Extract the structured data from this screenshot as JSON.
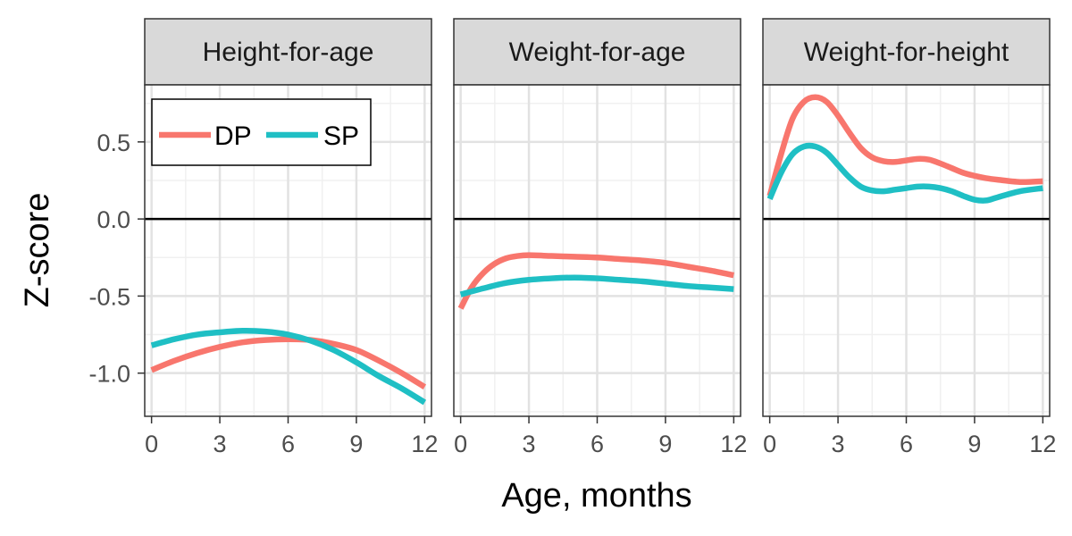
{
  "chart_data": {
    "type": "line",
    "xlabel": "Age, months",
    "ylabel": "Z-score",
    "xlim": [
      -0.3,
      12.3
    ],
    "ylim": [
      -1.28,
      0.87
    ],
    "x_ticks": [
      0,
      3,
      6,
      9,
      12
    ],
    "y_ticks": [
      0.5,
      0.0,
      -0.5,
      -1.0
    ],
    "y_tick_labels": [
      "0.5",
      "0.0",
      "-0.5",
      "-1.0"
    ],
    "reference_line": 0,
    "grid": true,
    "legend": {
      "position": "top-left",
      "entries": [
        "DP",
        "SP"
      ]
    },
    "colors": {
      "DP": "#f8766d",
      "SP": "#1fbfc4"
    },
    "panels": [
      {
        "title": "Height-for-age",
        "series": [
          {
            "name": "DP",
            "x": [
              0,
              1,
              2,
              3,
              4,
              5,
              6,
              7,
              8,
              9,
              10,
              11,
              12
            ],
            "values": [
              -0.98,
              -0.92,
              -0.87,
              -0.83,
              -0.8,
              -0.785,
              -0.78,
              -0.785,
              -0.81,
              -0.85,
              -0.92,
              -1.0,
              -1.09
            ]
          },
          {
            "name": "SP",
            "x": [
              0,
              1,
              2,
              3,
              4,
              5,
              6,
              7,
              8,
              9,
              10,
              11,
              12
            ],
            "values": [
              -0.82,
              -0.78,
              -0.75,
              -0.735,
              -0.725,
              -0.73,
              -0.75,
              -0.79,
              -0.85,
              -0.93,
              -1.02,
              -1.1,
              -1.19
            ]
          }
        ]
      },
      {
        "title": "Weight-for-age",
        "series": [
          {
            "name": "DP",
            "x": [
              0,
              0.5,
              1,
              1.5,
              2,
              2.5,
              3,
              4,
              5,
              6,
              7,
              8,
              9,
              10,
              11,
              12
            ],
            "values": [
              -0.58,
              -0.44,
              -0.35,
              -0.29,
              -0.255,
              -0.24,
              -0.235,
              -0.24,
              -0.245,
              -0.25,
              -0.26,
              -0.27,
              -0.285,
              -0.31,
              -0.335,
              -0.365
            ]
          },
          {
            "name": "SP",
            "x": [
              0,
              1,
              2,
              3,
              4,
              5,
              6,
              7,
              8,
              9,
              10,
              11,
              12
            ],
            "values": [
              -0.49,
              -0.45,
              -0.415,
              -0.395,
              -0.385,
              -0.38,
              -0.385,
              -0.395,
              -0.405,
              -0.42,
              -0.435,
              -0.445,
              -0.455
            ]
          }
        ]
      },
      {
        "title": "Weight-for-height",
        "series": [
          {
            "name": "DP",
            "x": [
              0,
              0.5,
              1,
              1.5,
              2,
              2.5,
              3,
              3.5,
              4,
              4.5,
              5,
              5.5,
              6,
              6.5,
              7,
              7.5,
              8,
              8.5,
              9,
              9.5,
              10,
              11,
              12
            ],
            "values": [
              0.15,
              0.42,
              0.65,
              0.76,
              0.79,
              0.76,
              0.67,
              0.56,
              0.46,
              0.4,
              0.375,
              0.37,
              0.38,
              0.39,
              0.385,
              0.36,
              0.33,
              0.3,
              0.28,
              0.265,
              0.255,
              0.24,
              0.245
            ]
          },
          {
            "name": "SP",
            "x": [
              0,
              0.5,
              1,
              1.5,
              2,
              2.5,
              3,
              3.5,
              4,
              4.5,
              5,
              5.5,
              6,
              6.5,
              7,
              7.5,
              8,
              8.5,
              9,
              9.5,
              10,
              11,
              12
            ],
            "values": [
              0.13,
              0.3,
              0.42,
              0.47,
              0.47,
              0.43,
              0.35,
              0.27,
              0.21,
              0.185,
              0.18,
              0.19,
              0.2,
              0.21,
              0.21,
              0.2,
              0.18,
              0.15,
              0.125,
              0.12,
              0.14,
              0.18,
              0.2
            ]
          }
        ]
      }
    ]
  }
}
